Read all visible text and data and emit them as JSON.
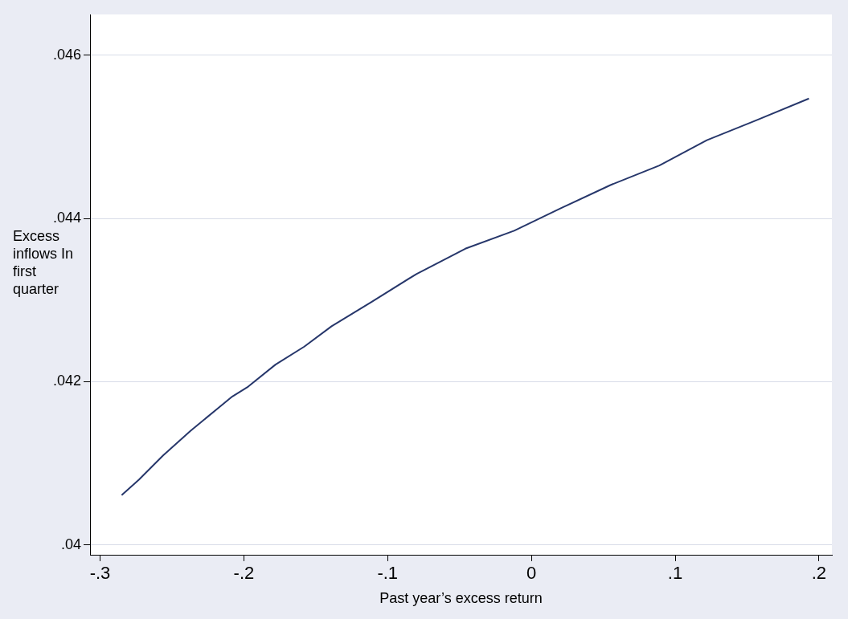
{
  "chart_data": {
    "type": "line",
    "xlabel": "Past year’s excess return",
    "ylabel": "Excess inflows In first quarter",
    "series": [
      {
        "color": "#27376b",
        "x": [
          -0.285,
          -0.273,
          -0.256,
          -0.237,
          -0.208,
          -0.197,
          -0.178,
          -0.158,
          -0.139,
          -0.111,
          -0.08,
          -0.046,
          -0.012,
          0.021,
          0.055,
          0.089,
          0.122,
          0.156,
          0.193
        ],
        "values": [
          0.04061,
          0.0408,
          0.0411,
          0.0414,
          0.04182,
          0.04194,
          0.04221,
          0.04243,
          0.04268,
          0.04298,
          0.04332,
          0.04363,
          0.04385,
          0.04413,
          0.04441,
          0.04465,
          0.04496,
          0.0452,
          0.04547
        ]
      }
    ],
    "xlim": [
      -0.307,
      0.209
    ],
    "xticks": [
      {
        "value": -0.3,
        "label": "-.3"
      },
      {
        "value": -0.2,
        "label": "-.2"
      },
      {
        "value": -0.1,
        "label": "-.1"
      },
      0,
      {
        "value": 0.1,
        "label": ".1"
      },
      {
        "value": 0.2,
        "label": ".2"
      }
    ],
    "ylim": [
      0.03988,
      0.0465
    ],
    "yticks": [
      {
        "value": 0.04,
        "label": ".04"
      },
      {
        "value": 0.042,
        "label": ".042"
      },
      {
        "value": 0.044,
        "label": ".044"
      },
      {
        "value": 0.046,
        "label": ".046"
      }
    ],
    "grid": "y",
    "legend": false,
    "marker": "none",
    "line_style": "solid"
  }
}
